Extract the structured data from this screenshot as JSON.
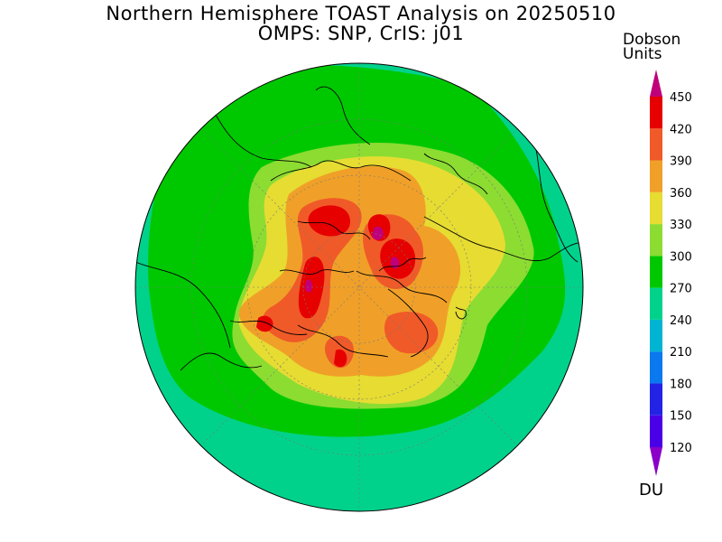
{
  "title": {
    "line1": "Northern Hemisphere TOAST Analysis on 20250510",
    "line2": "OMPS: SNP, CrIS: j01"
  },
  "legend": {
    "heading_line1": "Dobson",
    "heading_line2": "Units",
    "unit": "DU",
    "levels": [
      "120",
      "150",
      "180",
      "210",
      "240",
      "270",
      "300",
      "330",
      "360",
      "390",
      "420",
      "450"
    ],
    "colors": [
      "#8a00c8",
      "#4a00e6",
      "#2323e6",
      "#0a78ee",
      "#00b4d2",
      "#00d28c",
      "#00c800",
      "#8cdc32",
      "#e6dc32",
      "#f0a028",
      "#f05a28",
      "#e60000",
      "#c0007a"
    ]
  },
  "map": {
    "projection": "north-polar-stereographic",
    "field": "total column ozone",
    "colors": {
      "c240": "#00d28c",
      "c270": "#00c800",
      "c300": "#8cdc32",
      "c330": "#e6dc32",
      "c360": "#f0a028",
      "c390": "#f05a28",
      "c420": "#e60000",
      "c450": "#c0007a"
    }
  }
}
